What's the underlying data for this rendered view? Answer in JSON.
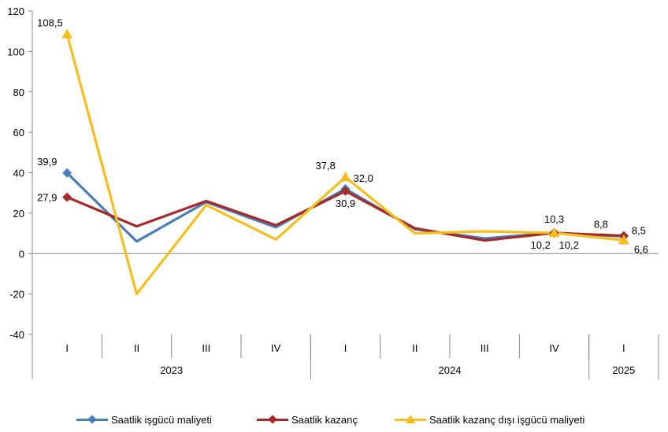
{
  "chart_data": {
    "type": "line",
    "ylim": [
      -40,
      120
    ],
    "yticks": [
      -40,
      -20,
      0,
      20,
      40,
      60,
      80,
      100,
      120
    ],
    "categories": [
      "I",
      "II",
      "III",
      "IV",
      "I",
      "II",
      "III",
      "IV",
      "I"
    ],
    "years": [
      {
        "label": "2023",
        "count": 4
      },
      {
        "label": "2024",
        "count": 4
      },
      {
        "label": "2025",
        "count": 1
      }
    ],
    "legend_position": "bottom",
    "series": [
      {
        "name": "Saatlik işgücü maliyeti",
        "color": "#4A7EBB",
        "marker": "diamond",
        "values": [
          39.9,
          6.0,
          25.5,
          13.0,
          32.0,
          12.0,
          7.5,
          10.3,
          8.5
        ]
      },
      {
        "name": "Saatlik kazanç",
        "color": "#A52A2A",
        "marker": "diamond",
        "values": [
          27.9,
          13.5,
          26.0,
          14.0,
          30.9,
          12.5,
          6.5,
          10.2,
          8.8
        ]
      },
      {
        "name": "Saatlik kazanç dışı işgücü maliyeti",
        "color": "#F5BD1F",
        "marker": "triangle",
        "values": [
          108.5,
          -20.0,
          24.0,
          7.0,
          37.8,
          10.0,
          11.0,
          10.2,
          6.6
        ]
      }
    ],
    "data_labels": [
      {
        "text": "108,5",
        "series": 2,
        "index": 0,
        "pos": "left-top"
      },
      {
        "text": "39,9",
        "series": 0,
        "index": 0,
        "pos": "left-top"
      },
      {
        "text": "27,9",
        "series": 1,
        "index": 0,
        "pos": "left"
      },
      {
        "text": "37,8",
        "series": 2,
        "index": 4,
        "pos": "left-top"
      },
      {
        "text": "32,0",
        "series": 0,
        "index": 4,
        "pos": "right-top"
      },
      {
        "text": "30,9",
        "series": 1,
        "index": 4,
        "pos": "below"
      },
      {
        "text": "10,3",
        "series": 0,
        "index": 7,
        "pos": "above"
      },
      {
        "text": "10,2",
        "series": 1,
        "index": 7,
        "pos": "below-left"
      },
      {
        "text": "10,2",
        "series": 2,
        "index": 7,
        "pos": "below-right"
      },
      {
        "text": "8,8",
        "series": 1,
        "index": 8,
        "pos": "left-top"
      },
      {
        "text": "8,5",
        "series": 0,
        "index": 8,
        "pos": "right"
      },
      {
        "text": "6,6",
        "series": 2,
        "index": 8,
        "pos": "right-below"
      }
    ]
  }
}
